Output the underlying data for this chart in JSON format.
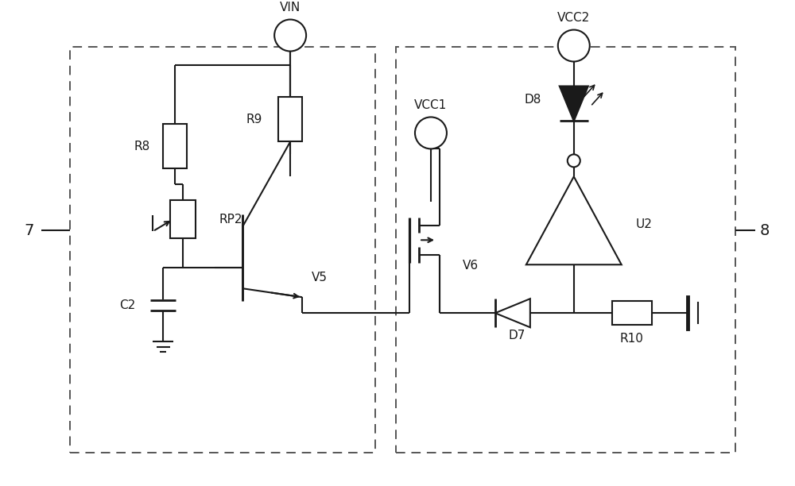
{
  "bg": "#ffffff",
  "lc": "#1a1a1a",
  "lw": 1.5,
  "figsize": [
    10.0,
    6.12
  ],
  "dpi": 100,
  "labels": {
    "7": "7",
    "8": "8",
    "VIN": "VIN",
    "VCC1": "VCC1",
    "VCC2": "VCC2",
    "R8": "R8",
    "R9": "R9",
    "RP2": "RP2",
    "C2": "C2",
    "V5": "V5",
    "V6": "V6",
    "D7": "D7",
    "D8": "D8",
    "R10": "R10",
    "U2": "U2"
  }
}
